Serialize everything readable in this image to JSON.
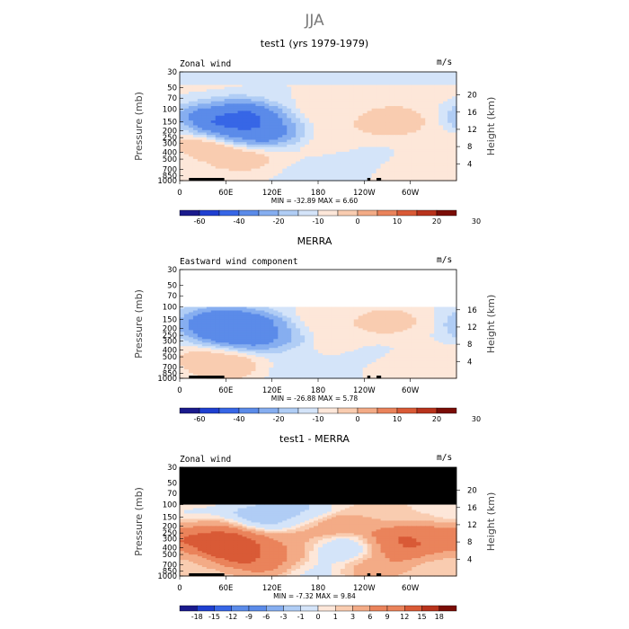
{
  "suptitle": "JJA",
  "colors": {
    "levels": [
      "#1a1a8c",
      "#1f3fd0",
      "#3766e6",
      "#5b8be9",
      "#86aef0",
      "#b0cdf5",
      "#d4e4f9",
      "#fde7d9",
      "#f9ccb0",
      "#f3ab86",
      "#ea835b",
      "#d95a36",
      "#b8331c",
      "#7a0d06"
    ],
    "frame": "#000000",
    "mask": "#000000"
  },
  "chart_data": [
    {
      "type": "heatmap",
      "title": "test1 (yrs 1979-1979)",
      "left_label": "Zonal wind",
      "units": "m/s",
      "ylabel": "Pressure (mb)",
      "ylabel_right": "Height (km)",
      "x_ticks": [
        "0",
        "60E",
        "120E",
        "180",
        "120W",
        "60W"
      ],
      "y_ticks": [
        "30",
        "50",
        "70",
        "100",
        "150",
        "200",
        "250",
        "300",
        "400",
        "500",
        "700",
        "850",
        "1000"
      ],
      "y_right_ticks": [
        "20",
        "16",
        "12",
        "8",
        "4"
      ],
      "stats": "MIN = -32.89   MAX =    6.60",
      "colorbar_labels": [
        "-60",
        "-40",
        "-20",
        "-10",
        "0",
        "10",
        "20",
        "30"
      ],
      "fields": [
        {
          "x": 20,
          "p": 50,
          "s": 0
        },
        {
          "x": 320,
          "p": 50,
          "s": 0
        },
        {
          "x": 40,
          "p": 70,
          "s": 1
        },
        {
          "x": 300,
          "p": 70,
          "s": 1
        },
        {
          "x": 80,
          "p": 150,
          "s": -32
        },
        {
          "x": 55,
          "p": 120,
          "s": -18
        },
        {
          "x": 105,
          "p": 200,
          "s": -15
        },
        {
          "x": 40,
          "p": 300,
          "s": 5
        },
        {
          "x": 80,
          "p": 500,
          "s": 4
        },
        {
          "x": 160,
          "p": 130,
          "s": 2
        },
        {
          "x": 200,
          "p": 300,
          "s": 2
        },
        {
          "x": 275,
          "p": 150,
          "s": 5
        },
        {
          "x": 230,
          "p": 500,
          "s": -2
        },
        {
          "x": 300,
          "p": 700,
          "s": 2
        },
        {
          "x": 170,
          "p": 850,
          "s": -1
        }
      ]
    },
    {
      "type": "heatmap",
      "title": "MERRA",
      "left_label": "Eastward wind component",
      "units": "m/s",
      "ylabel": "Pressure (mb)",
      "ylabel_right": "Height (km)",
      "x_ticks": [
        "0",
        "60E",
        "120E",
        "180",
        "120W",
        "60W"
      ],
      "y_ticks": [
        "30",
        "50",
        "70",
        "100",
        "150",
        "200",
        "250",
        "300",
        "400",
        "500",
        "700",
        "850",
        "1000"
      ],
      "y_right_ticks": [
        "16",
        "12",
        "8",
        "4"
      ],
      "stats": "MIN = -26.88   MAX =    5.78",
      "colorbar_labels": [
        "-60",
        "-40",
        "-20",
        "-10",
        "0",
        "10",
        "20",
        "30"
      ],
      "fields": [
        {
          "x": 75,
          "p": 200,
          "s": -26
        },
        {
          "x": 50,
          "p": 170,
          "s": -14
        },
        {
          "x": 110,
          "p": 250,
          "s": -10
        },
        {
          "x": 40,
          "p": 500,
          "s": 3
        },
        {
          "x": 60,
          "p": 700,
          "s": 4
        },
        {
          "x": 170,
          "p": 180,
          "s": 2
        },
        {
          "x": 210,
          "p": 350,
          "s": 1
        },
        {
          "x": 270,
          "p": 160,
          "s": 4
        },
        {
          "x": 240,
          "p": 450,
          "s": -1
        },
        {
          "x": 300,
          "p": 700,
          "s": 2
        },
        {
          "x": 160,
          "p": 850,
          "s": -2
        }
      ]
    },
    {
      "type": "heatmap",
      "title": "test1 - MERRA",
      "left_label": "Zonal wind",
      "units": "m/s",
      "ylabel": "Pressure (mb)",
      "ylabel_right": "Height (km)",
      "x_ticks": [
        "0",
        "60E",
        "120E",
        "180",
        "120W",
        "60W"
      ],
      "y_ticks": [
        "30",
        "50",
        "70",
        "100",
        "150",
        "200",
        "250",
        "300",
        "400",
        "500",
        "700",
        "850",
        "1000"
      ],
      "y_right_ticks": [
        "20",
        "16",
        "12",
        "8",
        "4"
      ],
      "stats": "MIN =  -7.32   MAX =    9.84",
      "colorbar_labels": [
        "-18",
        "-15",
        "-12",
        "-9",
        "-6",
        "-3",
        "-1",
        "0",
        "1",
        "3",
        "6",
        "9",
        "12",
        "15",
        "18"
      ],
      "fields": [
        {
          "x": 40,
          "p": 260,
          "s": 9
        },
        {
          "x": 70,
          "p": 400,
          "s": 9
        },
        {
          "x": 110,
          "p": 600,
          "s": 6
        },
        {
          "x": 20,
          "p": 160,
          "s": -2
        },
        {
          "x": 100,
          "p": 150,
          "s": -5
        },
        {
          "x": 160,
          "p": 130,
          "s": -4
        },
        {
          "x": 150,
          "p": 350,
          "s": 2
        },
        {
          "x": 200,
          "p": 200,
          "s": 4
        },
        {
          "x": 220,
          "p": 400,
          "s": -6
        },
        {
          "x": 280,
          "p": 350,
          "s": 8
        },
        {
          "x": 320,
          "p": 300,
          "s": 5
        },
        {
          "x": 250,
          "p": 700,
          "s": 3
        },
        {
          "x": 170,
          "p": 850,
          "s": -2
        }
      ]
    }
  ]
}
